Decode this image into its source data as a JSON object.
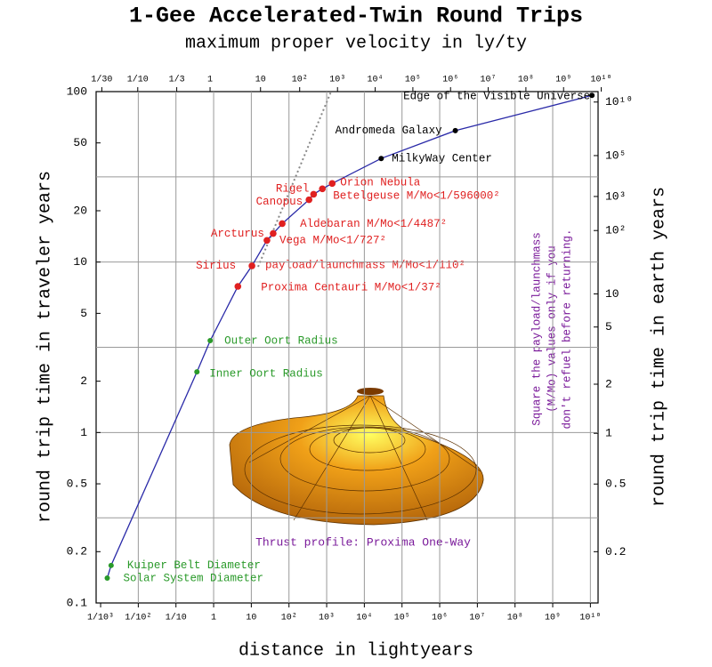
{
  "chart_data": {
    "type": "line",
    "title": "1-Gee Accelerated-Twin Round Trips",
    "x2label": "maximum proper velocity in ly/ty",
    "xlabel": "distance in lightyears",
    "ylabel": "round trip time in traveler years",
    "y2label": "round trip time in earth years",
    "log_x": true,
    "log_y": true,
    "xlim": [
      0.00076,
      16000000000
    ],
    "ylim": [
      0.1,
      100
    ],
    "x": [
      0.0015,
      0.0019,
      0.36,
      0.81,
      4.4,
      10.4,
      26,
      38,
      66,
      340,
      450,
      770,
      1400,
      28000,
      2600000,
      11000000000
    ],
    "values": [
      0.14,
      0.166,
      2.27,
      3.46,
      7.2,
      9.5,
      13.4,
      14.7,
      16.8,
      23.2,
      25,
      26.9,
      28.9,
      40.5,
      59,
      95
    ],
    "point_labels": [
      "Solar System Diameter",
      "Kuiper Belt Diameter",
      "Inner Oort Radius",
      "Outer Oort Radius",
      "Proxima Centauri M/Mo<1/37²",
      "Sirius",
      "Vega M/Mo<1/727²",
      "Arcturus",
      "Aldebaran M/Mo<1/4487²",
      "Canopus",
      "Rigel",
      "Betelgeuse M/Mo<1/596000²",
      "Orion Nebula",
      "MilkyWay Center",
      "Andromeda Galaxy",
      "Edge of the Visible Universe"
    ],
    "point_colors": [
      "#2a9a2a",
      "#2a9a2a",
      "#2a9a2a",
      "#2a9a2a",
      "#e02020",
      "#e02020",
      "#e02020",
      "#e02020",
      "#e02020",
      "#e02020",
      "#e02020",
      "#e02020",
      "#e02020",
      "#000000",
      "#000000",
      "#000000"
    ],
    "line_color": "#2a2aa8",
    "xticks": [
      {
        "value": 0.001,
        "label": "1/10³"
      },
      {
        "value": 0.01,
        "label": "1/10²"
      },
      {
        "value": 0.1,
        "label": "1/10"
      },
      1,
      10,
      {
        "value": 100,
        "label": "10²"
      },
      {
        "value": 1000,
        "label": "10³"
      },
      {
        "value": 10000,
        "label": "10⁴"
      },
      {
        "value": 100000,
        "label": "10⁵"
      },
      {
        "value": 1000000,
        "label": "10⁶"
      },
      {
        "value": 10000000,
        "label": "10⁷"
      },
      {
        "value": 100000000,
        "label": "10⁸"
      },
      {
        "value": 1000000000,
        "label": "10⁹"
      },
      {
        "value": 10000000000,
        "label": "10¹⁰"
      }
    ],
    "x2ticks": [
      {
        "value": 0.0333,
        "label": "1/30"
      },
      {
        "value": 0.1,
        "label": "1/10"
      },
      {
        "value": 0.333,
        "label": "1/3"
      },
      1,
      10,
      {
        "value": 100,
        "label": "10²"
      },
      {
        "value": 1000,
        "label": "10³"
      },
      {
        "value": 10000,
        "label": "10⁴"
      },
      {
        "value": 100000,
        "label": "10⁵"
      },
      {
        "value": 1000000,
        "label": "10⁶"
      },
      {
        "value": 10000000,
        "label": "10⁷"
      },
      {
        "value": 100000000,
        "label": "10⁸"
      },
      {
        "value": 1000000000,
        "label": "10⁹"
      },
      {
        "value": 10000000000,
        "label": "10¹⁰"
      }
    ],
    "yticks": [
      100,
      50,
      20,
      10,
      5,
      2,
      1,
      0.5,
      0.2,
      0.1
    ],
    "y2ticks": [
      {
        "value": 10000000000,
        "label": "10¹⁰"
      },
      {
        "value": 100000,
        "label": "10⁵"
      },
      {
        "value": 1000,
        "label": "10³"
      },
      {
        "value": 100,
        "label": "10²"
      },
      10,
      5,
      2,
      1,
      0.5,
      0.2
    ],
    "grid_x": true,
    "y_grid_lines": [
      31.6,
      10,
      3.16,
      1,
      0.316
    ],
    "annotations": [
      "payload/launchmass M/Mo<1/110²",
      "Thrust profile: Proxima One-Way"
    ],
    "note_lines": [
      "Square the payload/launchmass",
      "(M/Mo) values only if you",
      "don't refuel before returning."
    ]
  }
}
